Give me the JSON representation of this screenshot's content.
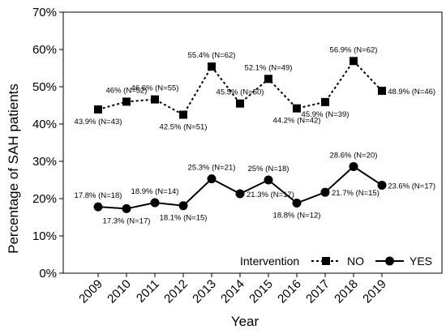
{
  "chart_data": {
    "type": "line",
    "xlabel": "Year",
    "ylabel": "Percentage of SAH patients",
    "ylim": [
      0,
      70
    ],
    "y_ticks": [
      "0%",
      "10%",
      "20%",
      "30%",
      "40%",
      "50%",
      "60%",
      "70%"
    ],
    "categories": [
      "2009",
      "2010",
      "2011",
      "2012",
      "2013",
      "2014",
      "2015",
      "2016",
      "2017",
      "2018",
      "2019"
    ],
    "grid": false,
    "legend": {
      "title": "Intervention",
      "position": "bottom-right",
      "entries": [
        "NO",
        "YES"
      ]
    },
    "series": [
      {
        "name": "NO",
        "line_style": "dotted",
        "marker": "square",
        "values": [
          43.9,
          46,
          46.6,
          42.5,
          55.4,
          45.5,
          52.1,
          44.2,
          45.9,
          56.9,
          48.9
        ],
        "labels": [
          "43.9% (N=43)",
          "46% (N=52)",
          "46.6% (N=55)",
          "42.5% (N=51)",
          "55.4% (N=62)",
          "45.5% (N=50)",
          "52.1% (N=49)",
          "44.2% (N=42)",
          "45.9% (N=39)",
          "56.9% (N=62)",
          "48.9% (N=46)"
        ]
      },
      {
        "name": "YES",
        "line_style": "solid",
        "marker": "circle",
        "values": [
          17.8,
          17.3,
          18.9,
          18.1,
          25.3,
          21.3,
          25,
          18.8,
          21.7,
          28.6,
          23.6
        ],
        "labels": [
          "17.8% (N=18)",
          "17.3% (N=17)",
          "18.9% (N=14)",
          "18.1% (N=15)",
          "25.3% (N=21)",
          "21.3% (N=17)",
          "25% (N=18)",
          "18.8% (N=12)",
          "21.7% (N=15)",
          "28.6% (N=20)",
          "23.6% (N=17)"
        ]
      }
    ],
    "colors": {
      "line": "#000000",
      "background": "#ffffff"
    }
  }
}
